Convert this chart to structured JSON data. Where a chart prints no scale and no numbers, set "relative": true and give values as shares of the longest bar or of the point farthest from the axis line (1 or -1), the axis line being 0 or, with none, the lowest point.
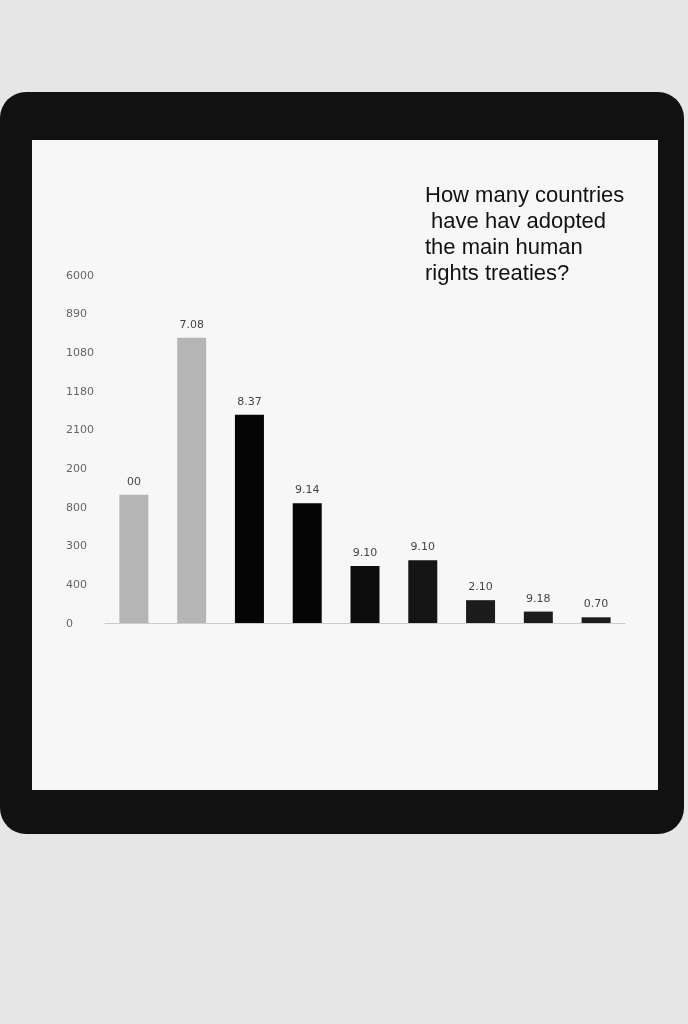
{
  "chart_data": {
    "type": "bar",
    "title": "How many countries have hav adopted the main human rights treaties?",
    "categories": [
      null,
      null,
      null,
      null,
      null,
      null,
      null,
      null,
      null
    ],
    "values": [
      0.45,
      1,
      0.73,
      0.42,
      0.2,
      0.22,
      0.08,
      0.04,
      0.02
    ],
    "colors": [
      "#b5b5b5",
      "#b5b5b5",
      "#050505",
      "#050505",
      "#0d0d0d",
      "#151515",
      "#1c1c1c",
      "#1c1c1c",
      "#1c1c1c"
    ],
    "relative": true,
    "annotations": [
      "00",
      "7.08",
      "8.37",
      "9.14",
      "9.10",
      "9.10",
      "2.10",
      "9.18",
      "0.70",
      "6000",
      "890",
      "1080",
      "1180",
      "2100",
      "200",
      "800",
      "300",
      "400",
      "0"
    ]
  }
}
